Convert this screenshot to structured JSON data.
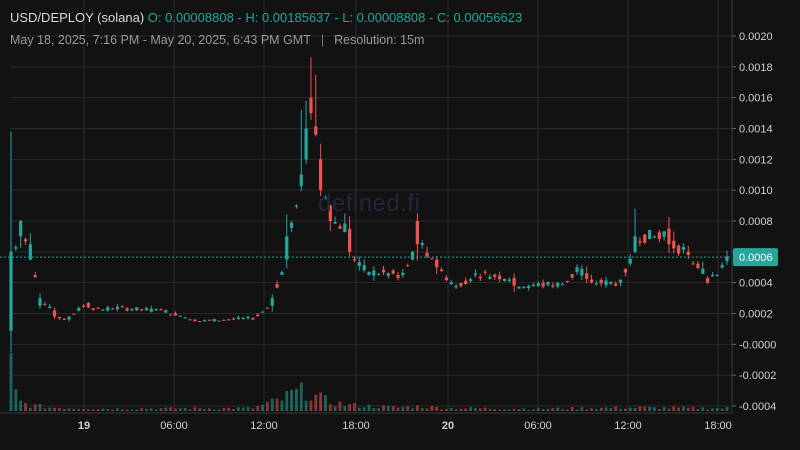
{
  "header": {
    "symbol": "USD/DEPLOY (solana)",
    "ohlc": "O: 0.00008808 - H: 0.00185637 - L: 0.00008808 - C: 0.00056623",
    "range": "May 18, 2025, 7:16 PM - May 20, 2025, 6:43 PM GMT",
    "separator": "|",
    "resolution": "Resolution: 15m"
  },
  "watermark": "defined.fi",
  "current_price_label": "0.0006",
  "colors": {
    "background": "#121212",
    "grid": "#2a2a2a",
    "up": "#26a69a",
    "down": "#ef5350",
    "price_line": "#26a69a",
    "text": "#d0d0d0"
  },
  "chart_data": {
    "type": "candlestick",
    "resolution": "15m",
    "y_ticks": [
      "0.0020",
      "0.0018",
      "0.0016",
      "0.0014",
      "0.0012",
      "0.0010",
      "0.0008",
      "0.0006",
      "0.0004",
      "0.0002",
      "-0.0000",
      "-0.0002",
      "-0.0004"
    ],
    "x_ticks": [
      {
        "label": "19",
        "bold": true
      },
      {
        "label": "06:00",
        "bold": false
      },
      {
        "label": "12:00",
        "bold": false
      },
      {
        "label": "18:00",
        "bold": false
      },
      {
        "label": "20",
        "bold": true
      },
      {
        "label": "06:00",
        "bold": false
      },
      {
        "label": "12:00",
        "bold": false
      },
      {
        "label": "18:00",
        "bold": false
      }
    ],
    "ylim": [
      -0.00045,
      0.00215
    ],
    "current_price": 0.000566,
    "keypoints": [
      [
        0,
        8.808e-05,
        0.0006
      ],
      [
        2,
        0.0007,
        0.0008
      ],
      [
        4,
        0.00055,
        0.00065
      ],
      [
        6,
        0.00025,
        0.0003
      ],
      [
        9,
        0.00022,
        0.00018
      ],
      [
        12,
        0.00016,
        0.00018
      ],
      [
        16,
        0.00027,
        0.00024
      ],
      [
        20,
        0.00022,
        0.00024
      ],
      [
        30,
        0.00022,
        0.00023
      ],
      [
        38,
        0.00016,
        0.00015
      ],
      [
        50,
        0.00017,
        0.00016
      ],
      [
        54,
        0.00025,
        0.0003
      ],
      [
        57,
        0.00055,
        0.0007
      ],
      [
        59,
        0.0009,
        0.0009
      ],
      [
        61,
        0.0012,
        0.0014
      ],
      [
        62,
        0.0016,
        0.0015
      ],
      [
        64,
        0.0012,
        0.001
      ],
      [
        66,
        0.0009,
        0.0008
      ],
      [
        70,
        0.00075,
        0.0006
      ],
      [
        74,
        0.00045,
        0.00047
      ],
      [
        80,
        0.00045,
        0.00043
      ],
      [
        83,
        0.00055,
        0.0006
      ],
      [
        84,
        0.0008,
        0.00065
      ],
      [
        88,
        0.00055,
        0.0005
      ],
      [
        92,
        0.00037,
        0.00038
      ],
      [
        96,
        0.00045,
        0.00046
      ],
      [
        104,
        0.00043,
        0.00038
      ],
      [
        114,
        0.00039,
        0.00039
      ],
      [
        117,
        0.00047,
        0.0005
      ],
      [
        120,
        0.00042,
        0.0004
      ],
      [
        126,
        0.0004,
        0.00042
      ],
      [
        129,
        0.0006,
        0.0007
      ],
      [
        133,
        0.0007,
        0.0007
      ],
      [
        136,
        0.00075,
        0.00065
      ],
      [
        140,
        0.0006,
        0.00058
      ],
      [
        144,
        0.00043,
        0.0004
      ],
      [
        146,
        0.00045,
        0.00045
      ],
      [
        148,
        0.00054,
        0.00057
      ]
    ],
    "volume_profile": [
      [
        0,
        1.0
      ],
      [
        1,
        0.3
      ],
      [
        2,
        0.15
      ],
      [
        4,
        0.1
      ],
      [
        8,
        0.06
      ],
      [
        20,
        0.04
      ],
      [
        50,
        0.05
      ],
      [
        56,
        0.2
      ],
      [
        58,
        0.3
      ],
      [
        61,
        0.35
      ],
      [
        63,
        0.25
      ],
      [
        66,
        0.15
      ],
      [
        70,
        0.1
      ],
      [
        80,
        0.06
      ],
      [
        84,
        0.08
      ],
      [
        90,
        0.05
      ],
      [
        110,
        0.04
      ],
      [
        128,
        0.06
      ],
      [
        140,
        0.05
      ],
      [
        148,
        0.05
      ]
    ]
  }
}
